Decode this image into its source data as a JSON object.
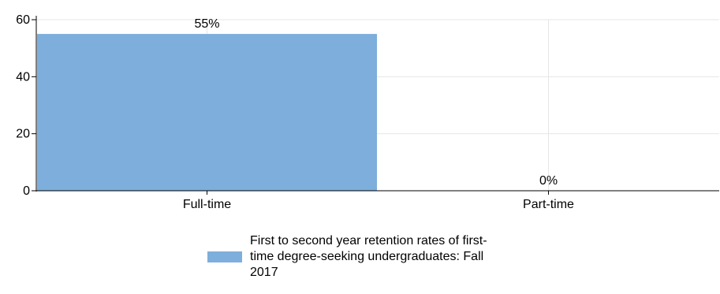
{
  "colors": {
    "bar": "#7eaedb",
    "grid": "#e6e6e6",
    "axis": "#000000"
  },
  "chart_data": {
    "type": "bar",
    "categories": [
      "Full-time",
      "Part-time"
    ],
    "series": [
      {
        "name": "First to second year retention rates of first-time degree-seeking undergraduates: Fall 2017",
        "values": [
          55,
          0
        ]
      }
    ],
    "data_labels": [
      "55%",
      "0%"
    ],
    "ylim": [
      0,
      60
    ],
    "yticks": [
      0,
      20,
      40,
      60
    ],
    "grid": true,
    "legend_position": "bottom"
  },
  "legend": {
    "label": "First to second year retention rates of first-time degree-seeking undergraduates: Fall 2017"
  }
}
